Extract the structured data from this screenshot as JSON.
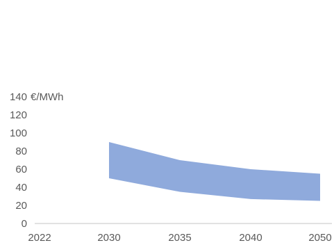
{
  "chart_data": {
    "type": "area",
    "title": "",
    "xlabel": "",
    "ylabel": "€/MWh",
    "x_ticks": [
      "2022",
      "2030",
      "2035",
      "2040",
      "2050"
    ],
    "y_ticks": [
      0,
      20,
      40,
      60,
      80,
      100,
      120,
      140
    ],
    "ylim": [
      0,
      140
    ],
    "grid": false,
    "legend": "none",
    "series": [
      {
        "kind": "range-band",
        "x": [
          "2030",
          "2035",
          "2040",
          "2050"
        ],
        "upper": [
          90,
          70,
          60,
          55
        ],
        "lower": [
          50,
          35,
          27,
          25
        ],
        "color": "#8faadc"
      }
    ],
    "colors": {
      "band": "#8faadc",
      "axis_line": "#d9d9d9",
      "text": "#595959"
    }
  }
}
